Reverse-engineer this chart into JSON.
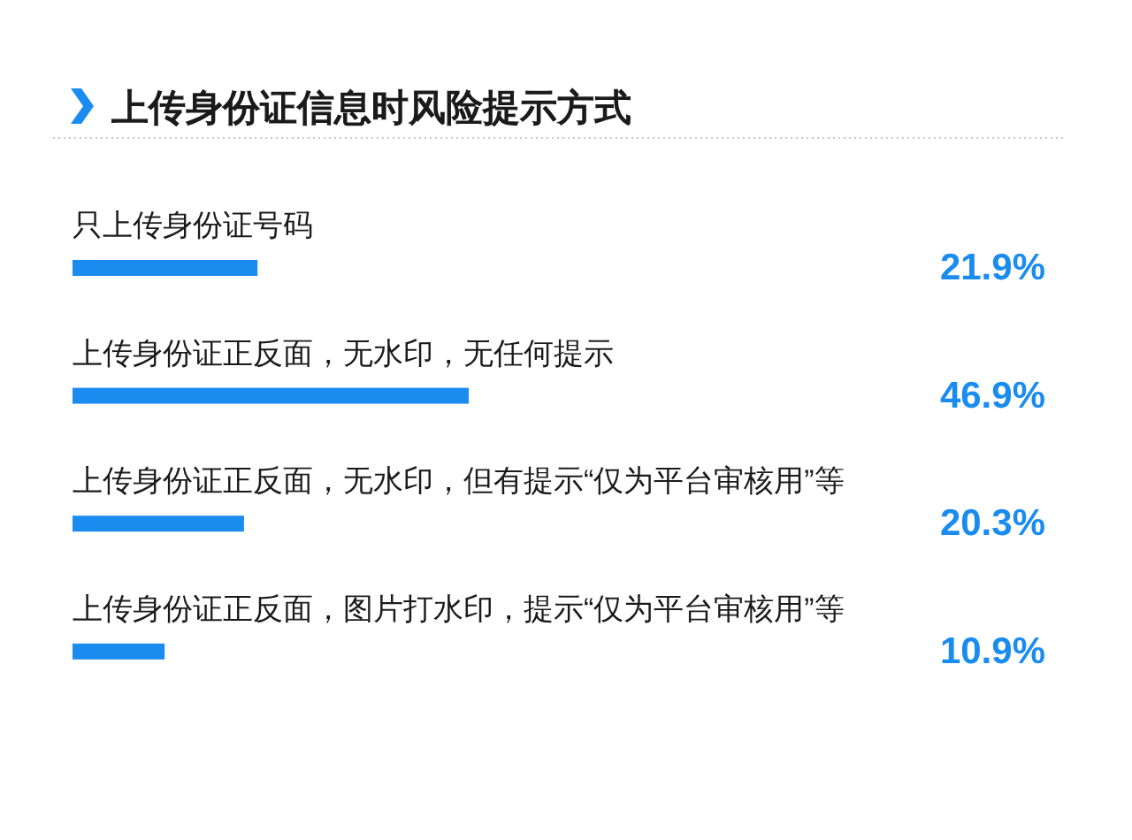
{
  "chart_data": {
    "type": "bar",
    "orientation": "horizontal",
    "title": "上传身份证信息时风险提示方式",
    "categories": [
      "只上传身份证号码",
      "上传身份证正反面，无水印，无任何提示",
      "上传身份证正反面，无水印，但有提示“仅为平台审核用”等",
      "上传身份证正反面，图片打水印，提示“仅为平台审核用”等"
    ],
    "values": [
      21.9,
      46.9,
      20.3,
      10.9
    ],
    "value_labels": [
      "21.9%",
      "46.9%",
      "20.3%",
      "10.9%"
    ],
    "color": "#1a8cf0"
  }
}
